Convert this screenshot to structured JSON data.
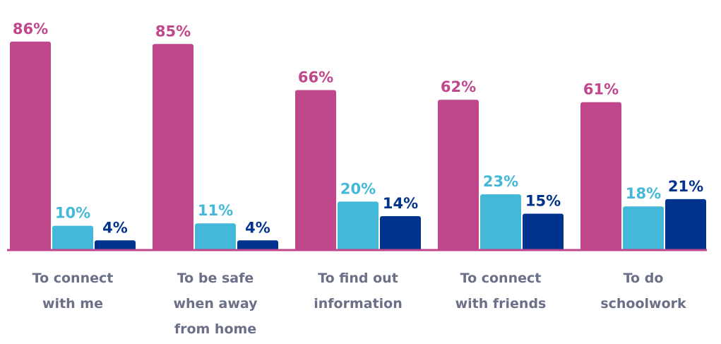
{
  "chart_data": {
    "type": "bar",
    "categories": [
      [
        "To connect",
        "with me"
      ],
      [
        "To be safe",
        "when away",
        "from home"
      ],
      [
        "To find out",
        "information"
      ],
      [
        "To connect",
        "with friends"
      ],
      [
        "To do",
        "schoolwork"
      ]
    ],
    "series": [
      {
        "values": [
          86,
          85,
          66,
          62,
          61
        ],
        "labels": [
          "86%",
          "85%",
          "66%",
          "62%",
          "61%"
        ],
        "color": "#c0478c"
      },
      {
        "values": [
          10,
          11,
          20,
          23,
          18
        ],
        "labels": [
          "10%",
          "11%",
          "20%",
          "23%",
          "18%"
        ],
        "color": "#43b8d8"
      },
      {
        "values": [
          4,
          4,
          14,
          15,
          21
        ],
        "labels": [
          "4%",
          "4%",
          "14%",
          "15%",
          "21%"
        ],
        "color": "#00338d"
      }
    ],
    "ylim": [
      0,
      100
    ],
    "grid": false,
    "legend": "none",
    "axis_color": "#c0478c",
    "category_label_color": "#6b7088"
  }
}
